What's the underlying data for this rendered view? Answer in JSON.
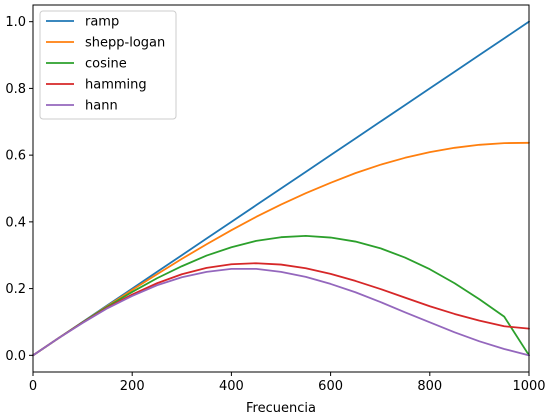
{
  "chart_data": {
    "type": "line",
    "title": "",
    "xlabel": "Frecuencia",
    "ylabel": "",
    "xlim": [
      0,
      1000
    ],
    "ylim": [
      -0.05,
      1.05
    ],
    "xticks": [
      0,
      200,
      400,
      600,
      800,
      1000
    ],
    "xtick_labels": [
      "0",
      "200",
      "400",
      "600",
      "800",
      "1000"
    ],
    "yticks": [
      0.0,
      0.2,
      0.4,
      0.6,
      0.8,
      1.0
    ],
    "ytick_labels": [
      "0.0",
      "0.2",
      "0.4",
      "0.6",
      "0.8",
      "1.0"
    ],
    "grid": false,
    "legend_position": "top-left",
    "x": [
      0,
      50,
      100,
      150,
      200,
      250,
      300,
      350,
      400,
      450,
      500,
      550,
      600,
      650,
      700,
      750,
      800,
      850,
      900,
      950,
      1000
    ],
    "series": [
      {
        "name": "ramp",
        "color": "#1f77b4",
        "values": [
          0.0,
          0.05,
          0.1,
          0.15,
          0.2,
          0.25,
          0.3,
          0.35,
          0.4,
          0.45,
          0.5,
          0.55,
          0.6,
          0.65,
          0.7,
          0.75,
          0.8,
          0.85,
          0.9,
          0.95,
          1.0
        ]
      },
      {
        "name": "shepp-logan",
        "color": "#ff7f0e",
        "values": [
          0.0,
          0.05,
          0.099,
          0.148,
          0.196,
          0.243,
          0.289,
          0.333,
          0.375,
          0.415,
          0.452,
          0.486,
          0.517,
          0.546,
          0.571,
          0.592,
          0.609,
          0.622,
          0.631,
          0.636,
          0.637
        ]
      },
      {
        "name": "cosine",
        "color": "#2ca02c",
        "values": [
          0.0,
          0.05,
          0.099,
          0.146,
          0.19,
          0.231,
          0.267,
          0.299,
          0.324,
          0.343,
          0.354,
          0.358,
          0.353,
          0.341,
          0.321,
          0.293,
          0.258,
          0.216,
          0.168,
          0.116,
          0.0
        ]
      },
      {
        "name": "hamming",
        "color": "#d62728",
        "values": [
          0.0,
          0.05,
          0.098,
          0.143,
          0.182,
          0.216,
          0.243,
          0.262,
          0.273,
          0.276,
          0.272,
          0.261,
          0.244,
          0.223,
          0.199,
          0.173,
          0.147,
          0.124,
          0.104,
          0.087,
          0.08
        ]
      },
      {
        "name": "hann",
        "color": "#9467bd",
        "values": [
          0.0,
          0.05,
          0.097,
          0.141,
          0.178,
          0.21,
          0.234,
          0.25,
          0.259,
          0.259,
          0.25,
          0.235,
          0.214,
          0.189,
          0.16,
          0.129,
          0.099,
          0.069,
          0.042,
          0.019,
          0.0
        ]
      }
    ]
  }
}
